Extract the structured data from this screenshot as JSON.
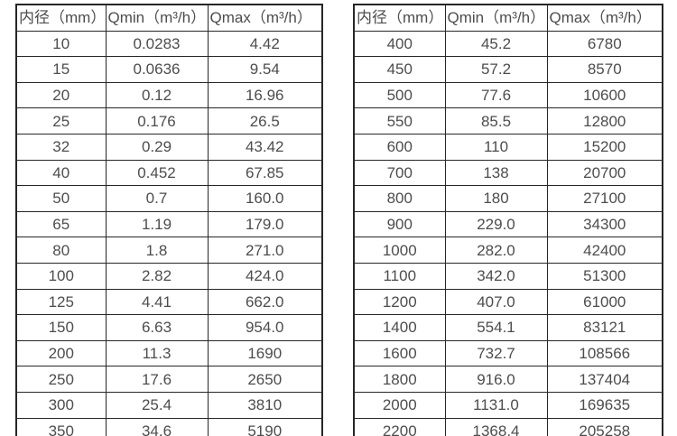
{
  "page": {
    "background": "#ffffff",
    "text_color": "#4d4d4d",
    "border_color": "#262626"
  },
  "chart_data": [
    {
      "type": "table",
      "title": "",
      "columns": [
        "内径（mm）",
        "Qmin（m³/h）",
        "Qmax（m³/h）"
      ],
      "rows": [
        [
          "10",
          "0.0283",
          "4.42"
        ],
        [
          "15",
          "0.0636",
          "9.54"
        ],
        [
          "20",
          "0.12",
          "16.96"
        ],
        [
          "25",
          "0.176",
          "26.5"
        ],
        [
          "32",
          "0.29",
          "43.42"
        ],
        [
          "40",
          "0.452",
          "67.85"
        ],
        [
          "50",
          "0.7",
          "160.0"
        ],
        [
          "65",
          "1.19",
          "179.0"
        ],
        [
          "80",
          "1.8",
          "271.0"
        ],
        [
          "100",
          "2.82",
          "424.0"
        ],
        [
          "125",
          "4.41",
          "662.0"
        ],
        [
          "150",
          "6.63",
          "954.0"
        ],
        [
          "200",
          "11.3",
          "1690"
        ],
        [
          "250",
          "17.6",
          "2650"
        ],
        [
          "300",
          "25.4",
          "3810"
        ],
        [
          "350",
          "34.6",
          "5190"
        ]
      ]
    },
    {
      "type": "table",
      "title": "",
      "columns": [
        "内径（mm）",
        "Qmin（m³/h）",
        "Qmax（m³/h）"
      ],
      "rows": [
        [
          "400",
          "45.2",
          "6780"
        ],
        [
          "450",
          "57.2",
          "8570"
        ],
        [
          "500",
          "77.6",
          "10600"
        ],
        [
          "550",
          "85.5",
          "12800"
        ],
        [
          "600",
          "110",
          "15200"
        ],
        [
          "700",
          "138",
          "20700"
        ],
        [
          "800",
          "180",
          "27100"
        ],
        [
          "900",
          "229.0",
          "34300"
        ],
        [
          "1000",
          "282.0",
          "42400"
        ],
        [
          "1100",
          "342.0",
          "51300"
        ],
        [
          "1200",
          "407.0",
          "61000"
        ],
        [
          "1400",
          "554.1",
          "83121"
        ],
        [
          "1600",
          "732.7",
          "108566"
        ],
        [
          "1800",
          "916.0",
          "137404"
        ],
        [
          "2000",
          "1131.0",
          "169635"
        ],
        [
          "2200",
          "1368.4",
          "205258"
        ]
      ]
    }
  ]
}
